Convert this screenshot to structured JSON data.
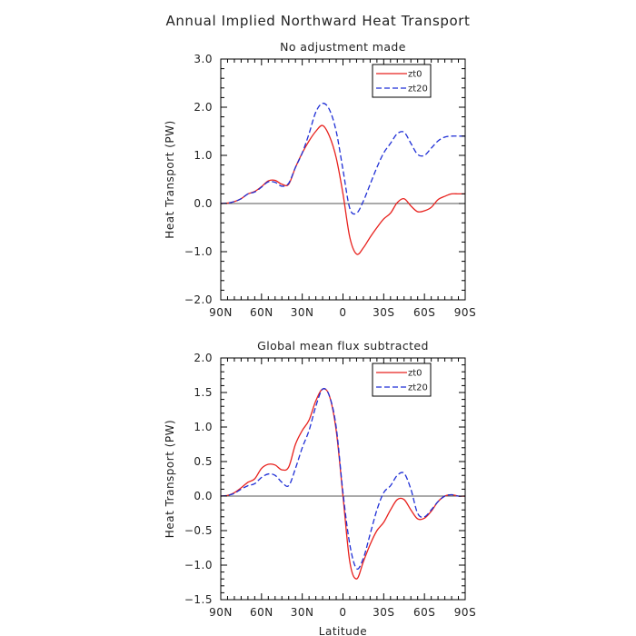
{
  "title": "Annual Implied Northward Heat Transport",
  "chart_data": [
    {
      "type": "line",
      "title": "No adjustment made",
      "xlabel": "",
      "ylabel": "Heat Transport (PW)",
      "x_axis": "latitude, 90N to 90S",
      "xticks": [
        {
          "value": 90,
          "label": "90N"
        },
        {
          "value": 60,
          "label": "60N"
        },
        {
          "value": 30,
          "label": "30N"
        },
        {
          "value": 0,
          "label": "0"
        },
        {
          "value": -30,
          "label": "30S"
        },
        {
          "value": -60,
          "label": "60S"
        },
        {
          "value": -90,
          "label": "90S"
        }
      ],
      "ylim": [
        -2.0,
        3.0
      ],
      "yticks": [
        {
          "value": 3,
          "label": "3.0"
        },
        {
          "value": 2,
          "label": "2.0"
        },
        {
          "value": 1,
          "label": "1.0"
        },
        {
          "value": 0,
          "label": "0.0"
        },
        {
          "value": -1,
          "label": "−1.0"
        },
        {
          "value": -2,
          "label": "−2.0"
        }
      ],
      "legend_position": "top-right",
      "series": [
        {
          "name": "zt0",
          "color": "#e8211d",
          "dash": "solid",
          "x": [
            90,
            85,
            80,
            75,
            70,
            65,
            60,
            55,
            50,
            45,
            40,
            35,
            30,
            25,
            20,
            15,
            10,
            5,
            0,
            -5,
            -10,
            -15,
            -20,
            -25,
            -30,
            -35,
            -40,
            -45,
            -50,
            -55,
            -60,
            -65,
            -70,
            -75,
            -80,
            -85,
            -90
          ],
          "y": [
            0.0,
            0.01,
            0.04,
            0.1,
            0.2,
            0.25,
            0.35,
            0.47,
            0.48,
            0.4,
            0.4,
            0.75,
            1.05,
            1.3,
            1.5,
            1.62,
            1.4,
            0.95,
            0.2,
            -0.7,
            -1.05,
            -0.92,
            -0.7,
            -0.5,
            -0.32,
            -0.2,
            0.02,
            0.1,
            -0.05,
            -0.17,
            -0.15,
            -0.08,
            0.08,
            0.15,
            0.2,
            0.2,
            0.2
          ]
        },
        {
          "name": "zt20",
          "color": "#1f2fd6",
          "dash": "dashed",
          "x": [
            90,
            85,
            80,
            75,
            70,
            65,
            60,
            55,
            50,
            45,
            40,
            35,
            30,
            25,
            20,
            15,
            10,
            5,
            0,
            -5,
            -10,
            -15,
            -20,
            -25,
            -30,
            -35,
            -40,
            -45,
            -50,
            -55,
            -60,
            -65,
            -70,
            -75,
            -80,
            -85,
            -90
          ],
          "y": [
            0.0,
            0.01,
            0.04,
            0.1,
            0.2,
            0.24,
            0.34,
            0.45,
            0.44,
            0.36,
            0.42,
            0.75,
            1.05,
            1.45,
            1.9,
            2.08,
            1.95,
            1.5,
            0.7,
            -0.1,
            -0.2,
            0.05,
            0.4,
            0.75,
            1.05,
            1.25,
            1.45,
            1.48,
            1.25,
            1.02,
            1.0,
            1.15,
            1.3,
            1.38,
            1.4,
            1.4,
            1.4
          ]
        }
      ]
    },
    {
      "type": "line",
      "title": "Global mean flux subtracted",
      "xlabel": "Latitude",
      "ylabel": "Heat Transport (PW)",
      "x_axis": "latitude, 90N to 90S",
      "xticks": [
        {
          "value": 90,
          "label": "90N"
        },
        {
          "value": 60,
          "label": "60N"
        },
        {
          "value": 30,
          "label": "30N"
        },
        {
          "value": 0,
          "label": "0"
        },
        {
          "value": -30,
          "label": "30S"
        },
        {
          "value": -60,
          "label": "60S"
        },
        {
          "value": -90,
          "label": "90S"
        }
      ],
      "ylim": [
        -1.5,
        2.0
      ],
      "yticks": [
        {
          "value": 2,
          "label": "2.0"
        },
        {
          "value": 1.5,
          "label": "1.5"
        },
        {
          "value": 1,
          "label": "1.0"
        },
        {
          "value": 0.5,
          "label": "0.5"
        },
        {
          "value": 0,
          "label": "0.0"
        },
        {
          "value": -0.5,
          "label": "−0.5"
        },
        {
          "value": -1,
          "label": "−1.0"
        },
        {
          "value": -1.5,
          "label": "−1.5"
        }
      ],
      "legend_position": "top-right",
      "series": [
        {
          "name": "zt0",
          "color": "#e8211d",
          "dash": "solid",
          "x": [
            90,
            85,
            80,
            75,
            70,
            65,
            60,
            55,
            50,
            45,
            40,
            35,
            30,
            25,
            20,
            15,
            10,
            5,
            0,
            -5,
            -10,
            -15,
            -20,
            -25,
            -30,
            -35,
            -40,
            -45,
            -50,
            -55,
            -60,
            -65,
            -70,
            -75,
            -80,
            -85,
            -90
          ],
          "y": [
            0.0,
            0.01,
            0.05,
            0.12,
            0.2,
            0.25,
            0.4,
            0.46,
            0.45,
            0.38,
            0.42,
            0.75,
            0.95,
            1.1,
            1.38,
            1.55,
            1.45,
            0.95,
            0.0,
            -0.95,
            -1.2,
            -0.95,
            -0.7,
            -0.5,
            -0.38,
            -0.2,
            -0.05,
            -0.05,
            -0.2,
            -0.33,
            -0.32,
            -0.22,
            -0.08,
            0.0,
            0.02,
            0.0,
            0.0
          ]
        },
        {
          "name": "zt20",
          "color": "#1f2fd6",
          "dash": "dashed",
          "x": [
            90,
            85,
            80,
            75,
            70,
            65,
            60,
            55,
            50,
            45,
            40,
            35,
            30,
            25,
            20,
            15,
            10,
            5,
            0,
            -5,
            -10,
            -15,
            -20,
            -25,
            -30,
            -35,
            -40,
            -45,
            -50,
            -55,
            -60,
            -65,
            -70,
            -75,
            -80,
            -85,
            -90
          ],
          "y": [
            0.0,
            0.01,
            0.04,
            0.1,
            0.15,
            0.18,
            0.27,
            0.32,
            0.3,
            0.2,
            0.15,
            0.4,
            0.7,
            0.95,
            1.3,
            1.55,
            1.45,
            1.0,
            0.05,
            -0.7,
            -1.05,
            -0.9,
            -0.55,
            -0.2,
            0.05,
            0.15,
            0.3,
            0.33,
            0.1,
            -0.25,
            -0.3,
            -0.2,
            -0.08,
            0.0,
            0.02,
            0.0,
            0.0
          ]
        }
      ]
    }
  ]
}
